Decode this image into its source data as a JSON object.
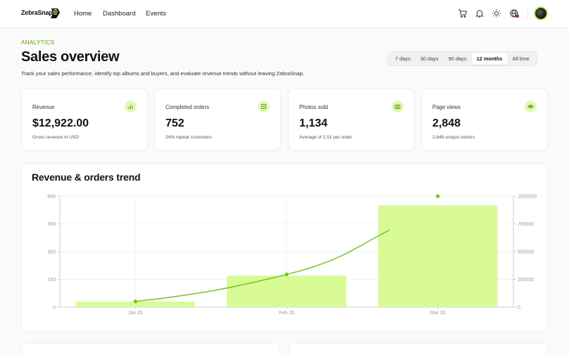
{
  "nav": {
    "logo": "ZebraSnap",
    "links": [
      "Home",
      "Dashboard",
      "Events"
    ]
  },
  "header": {
    "eyebrow": "ANALYTICS",
    "title": "Sales overview",
    "subtitle": "Track your sales performance, identify top albums and buyers, and evaluate revenue trends without leaving ZebraSnap."
  },
  "range": {
    "options": [
      "7 days",
      "30 days",
      "90 days",
      "12 months",
      "All time"
    ],
    "selected": "12 months"
  },
  "stats": [
    {
      "label": "Revenue",
      "value": "$12,922.00",
      "note": "Gross revenue in USD",
      "icon": "bar-chart-icon"
    },
    {
      "label": "Completed orders",
      "value": "752",
      "note": "24% repeat customers",
      "icon": "shopping-bag-icon"
    },
    {
      "label": "Photos sold",
      "value": "1,134",
      "note": "Average of 1.51 per order",
      "icon": "camera-icon"
    },
    {
      "label": "Page views",
      "value": "2,848",
      "note": "2,848 unique visitors",
      "icon": "eye-icon"
    }
  ],
  "colors": {
    "accent": "#b9f566",
    "accent_dark": "#6cc418",
    "bar": "#d8fb96",
    "eyebrow": "#5c9e0a"
  },
  "chart_data": {
    "type": "bar",
    "title": "Revenue & orders trend",
    "categories": [
      "Jan 26",
      "Feb 26",
      "Mar 26"
    ],
    "series": [
      {
        "values": [
          30,
          170,
          550
        ],
        "axis": "left",
        "render": "bar"
      },
      {
        "values": [
          52000,
          295000,
          1000000
        ],
        "axis": "right",
        "render": "line"
      }
    ],
    "left_axis": {
      "ticks": [
        0,
        150,
        300,
        450,
        600
      ],
      "ylim": [
        0,
        600
      ]
    },
    "right_axis": {
      "ticks": [
        0,
        250000,
        500000,
        750000,
        1000000
      ],
      "ylim": [
        0,
        1000000
      ]
    },
    "grid": true
  }
}
